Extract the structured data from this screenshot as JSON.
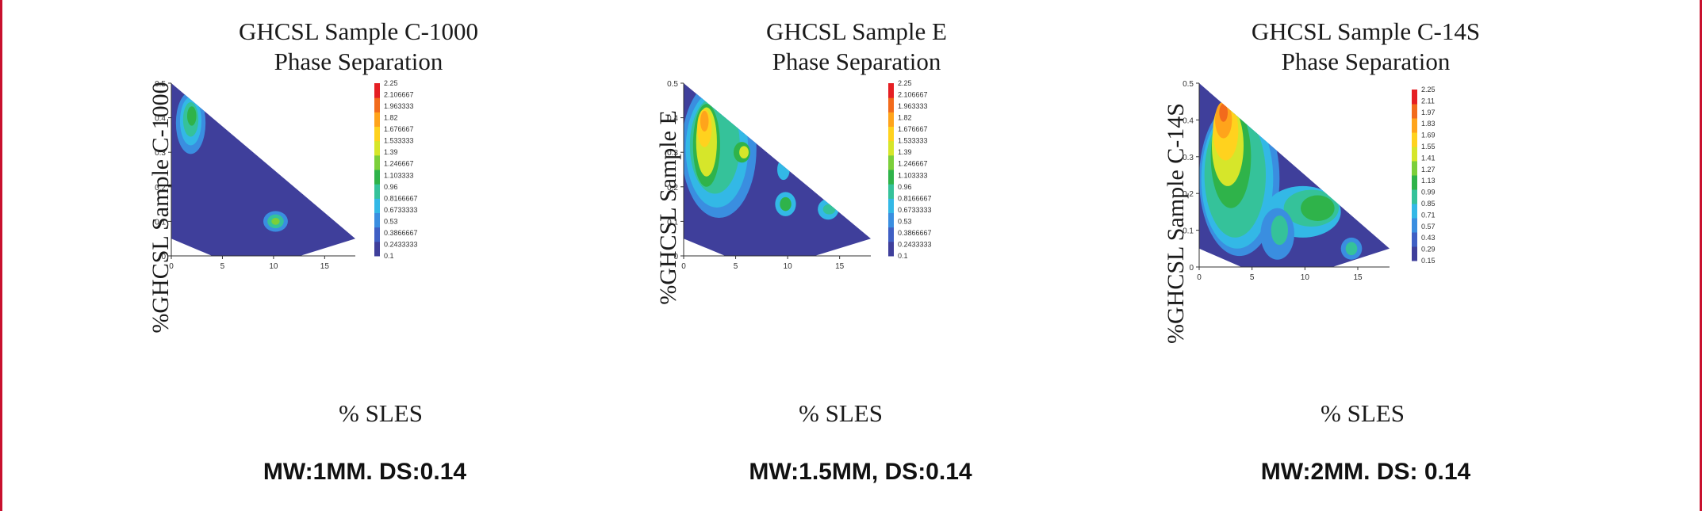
{
  "colors": {
    "frame": "#c8102e",
    "scale": [
      "#3f3f9b",
      "#3f5fc4",
      "#3a8ee0",
      "#33b8e6",
      "#35c29a",
      "#2fb34a",
      "#7ccf3a",
      "#d6e62a",
      "#ffd21e",
      "#ffa41b",
      "#f26b1c",
      "#e51f23"
    ]
  },
  "chart_data": [
    {
      "type": "heatmap",
      "title": [
        "GHCSL Sample C-1000",
        "Phase Separation"
      ],
      "xlabel": "% SLES",
      "ylabel": "%GHCSL Sample C-1000",
      "xlim": [
        0,
        18
      ],
      "ylim": [
        0,
        0.5
      ],
      "x_ticks": [
        "0",
        "5",
        "10",
        "15"
      ],
      "y_ticks": [
        "0",
        "0.1",
        "0.2",
        "0.3",
        "0.4",
        "0.5"
      ],
      "colorbar_labels": [
        "2.25",
        "2.106667",
        "1.963333",
        "1.82",
        "1.676667",
        "1.533333",
        "1.39",
        "1.246667",
        "1.103333",
        "0.96",
        "0.8166667",
        "0.6733333",
        "0.53",
        "0.3866667",
        "0.2433333",
        "0.1"
      ],
      "base_level": 0,
      "caption": "MW:1MM. DS:0.14",
      "regions": [
        {
          "level": 2,
          "x": 1.9,
          "y": 0.385,
          "rx": 1.45,
          "ry": 0.09
        },
        {
          "level": 3,
          "x": 1.9,
          "y": 0.39,
          "rx": 1.05,
          "ry": 0.07
        },
        {
          "level": 4,
          "x": 1.9,
          "y": 0.395,
          "rx": 0.75,
          "ry": 0.05
        },
        {
          "level": 5,
          "x": 2.0,
          "y": 0.405,
          "rx": 0.45,
          "ry": 0.028
        },
        {
          "level": 2,
          "x": 10.2,
          "y": 0.1,
          "rx": 1.2,
          "ry": 0.03
        },
        {
          "level": 4,
          "x": 10.2,
          "y": 0.1,
          "rx": 0.8,
          "ry": 0.02
        },
        {
          "level": 6,
          "x": 10.2,
          "y": 0.1,
          "rx": 0.4,
          "ry": 0.01
        }
      ]
    },
    {
      "type": "heatmap",
      "title": [
        "GHCSL Sample E",
        "Phase Separation"
      ],
      "xlabel": "% SLES",
      "ylabel": "%GHCSL Sample E",
      "xlim": [
        0,
        18
      ],
      "ylim": [
        0,
        0.5
      ],
      "x_ticks": [
        "0",
        "5",
        "10",
        "15"
      ],
      "y_ticks": [
        "0",
        "0.1",
        "0.2",
        "0.3",
        "0.4",
        "0.5"
      ],
      "colorbar_labels": [
        "2.25",
        "2.106667",
        "1.963333",
        "1.82",
        "1.676667",
        "1.533333",
        "1.39",
        "1.246667",
        "1.103333",
        "0.96",
        "0.8166667",
        "0.6733333",
        "0.53",
        "0.3866667",
        "0.2433333",
        "0.1"
      ],
      "base_level": 0,
      "caption": "MW:1.5MM, DS:0.14",
      "regions": [
        {
          "level": 2,
          "x": 3.4,
          "y": 0.31,
          "rx": 3.6,
          "ry": 0.2
        },
        {
          "level": 3,
          "x": 3.2,
          "y": 0.31,
          "rx": 3.0,
          "ry": 0.17
        },
        {
          "level": 4,
          "x": 3.0,
          "y": 0.32,
          "rx": 2.4,
          "ry": 0.14
        },
        {
          "level": 5,
          "x": 2.2,
          "y": 0.32,
          "rx": 1.3,
          "ry": 0.12
        },
        {
          "level": 7,
          "x": 2.2,
          "y": 0.33,
          "rx": 1.0,
          "ry": 0.1
        },
        {
          "level": 8,
          "x": 2.0,
          "y": 0.37,
          "rx": 0.7,
          "ry": 0.055
        },
        {
          "level": 9,
          "x": 2.0,
          "y": 0.39,
          "rx": 0.4,
          "ry": 0.03
        },
        {
          "level": 5,
          "x": 5.6,
          "y": 0.3,
          "rx": 0.8,
          "ry": 0.03
        },
        {
          "level": 7,
          "x": 5.8,
          "y": 0.3,
          "rx": 0.45,
          "ry": 0.018
        },
        {
          "level": 3,
          "x": 9.8,
          "y": 0.15,
          "rx": 1.0,
          "ry": 0.035
        },
        {
          "level": 5,
          "x": 9.8,
          "y": 0.15,
          "rx": 0.55,
          "ry": 0.02
        },
        {
          "level": 3,
          "x": 9.6,
          "y": 0.25,
          "rx": 0.6,
          "ry": 0.03
        },
        {
          "level": 3,
          "x": 13.9,
          "y": 0.135,
          "rx": 1.0,
          "ry": 0.03
        },
        {
          "level": 4,
          "x": 14.0,
          "y": 0.135,
          "rx": 0.6,
          "ry": 0.015
        }
      ]
    },
    {
      "type": "heatmap",
      "title": [
        "GHCSL Sample C-14S",
        "Phase Separation"
      ],
      "xlabel": "% SLES",
      "ylabel": "%GHCSL Sample C-14S",
      "xlim": [
        0,
        18
      ],
      "ylim": [
        0,
        0.5
      ],
      "x_ticks": [
        "0",
        "5",
        "10",
        "15"
      ],
      "y_ticks": [
        "0",
        "0.1",
        "0.2",
        "0.3",
        "0.4",
        "0.5"
      ],
      "colorbar_labels": [
        "2.25",
        "2.11",
        "1.97",
        "1.83",
        "1.69",
        "1.55",
        "1.41",
        "1.27",
        "1.13",
        "0.99",
        "0.85",
        "0.71",
        "0.57",
        "0.43",
        "0.29",
        "0.15"
      ],
      "base_level": 0,
      "caption": "MW:2MM. DS: 0.14",
      "regions": [
        {
          "level": 2,
          "x": 3.8,
          "y": 0.24,
          "rx": 3.8,
          "ry": 0.21
        },
        {
          "level": 3,
          "x": 3.6,
          "y": 0.24,
          "rx": 3.4,
          "ry": 0.19
        },
        {
          "level": 4,
          "x": 3.4,
          "y": 0.25,
          "rx": 2.9,
          "ry": 0.17
        },
        {
          "level": 5,
          "x": 3.0,
          "y": 0.3,
          "rx": 1.9,
          "ry": 0.14
        },
        {
          "level": 7,
          "x": 2.7,
          "y": 0.33,
          "rx": 1.5,
          "ry": 0.11
        },
        {
          "level": 8,
          "x": 2.5,
          "y": 0.37,
          "rx": 1.2,
          "ry": 0.08
        },
        {
          "level": 9,
          "x": 2.3,
          "y": 0.4,
          "rx": 0.8,
          "ry": 0.05
        },
        {
          "level": 10,
          "x": 2.3,
          "y": 0.42,
          "rx": 0.4,
          "ry": 0.025
        },
        {
          "level": 3,
          "x": 9.8,
          "y": 0.15,
          "rx": 3.6,
          "ry": 0.07
        },
        {
          "level": 4,
          "x": 10.6,
          "y": 0.16,
          "rx": 2.6,
          "ry": 0.05
        },
        {
          "level": 5,
          "x": 11.2,
          "y": 0.16,
          "rx": 1.6,
          "ry": 0.035
        },
        {
          "level": 2,
          "x": 7.4,
          "y": 0.09,
          "rx": 1.6,
          "ry": 0.07
        },
        {
          "level": 4,
          "x": 7.6,
          "y": 0.1,
          "rx": 0.8,
          "ry": 0.04
        },
        {
          "level": 2,
          "x": 14.4,
          "y": 0.05,
          "rx": 1.0,
          "ry": 0.03
        },
        {
          "level": 4,
          "x": 14.4,
          "y": 0.05,
          "rx": 0.55,
          "ry": 0.018
        }
      ]
    }
  ]
}
